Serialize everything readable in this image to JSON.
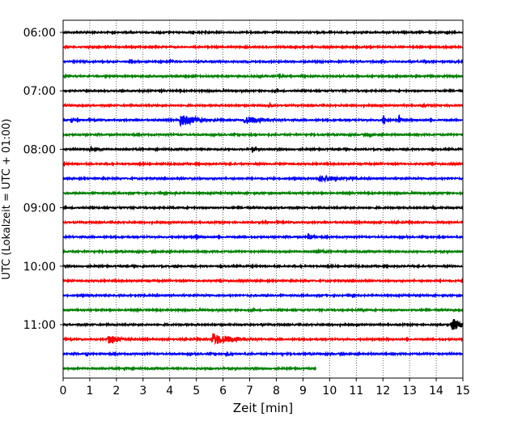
{
  "chart_data": {
    "type": "line",
    "title": "",
    "xlabel": "Zeit  [min]",
    "ylabel": "UTC (Lokalzeit = UTC + 01:00)",
    "xlim": [
      0,
      15
    ],
    "x_ticks": [
      0,
      1,
      2,
      3,
      4,
      5,
      6,
      7,
      8,
      9,
      10,
      11,
      12,
      13,
      14,
      15
    ],
    "y_tick_labels": [
      "06:00",
      "07:00",
      "08:00",
      "09:00",
      "10:00",
      "11:00"
    ],
    "vertical_grid": true,
    "trace_colors": [
      "#000000",
      "#ff0000",
      "#0000ff",
      "#008000"
    ],
    "traces": [
      {
        "start": "06:00",
        "end_min": 15,
        "color": "#000000",
        "events": []
      },
      {
        "start": "06:15",
        "end_min": 15,
        "color": "#ff0000",
        "events": []
      },
      {
        "start": "06:30",
        "end_min": 15,
        "color": "#0000ff",
        "events": [
          {
            "t": 4.0,
            "amp": 0.25,
            "dur": 0.4
          },
          {
            "t": 14.7,
            "amp": 0.2,
            "dur": 0.3
          }
        ]
      },
      {
        "start": "06:45",
        "end_min": 15,
        "color": "#008000",
        "events": [
          {
            "t": 3.2,
            "amp": 0.25,
            "dur": 0.2
          },
          {
            "t": 8.1,
            "amp": 0.45,
            "dur": 0.3
          }
        ]
      },
      {
        "start": "07:00",
        "end_min": 15,
        "color": "#000000",
        "events": [
          {
            "t": 2.2,
            "amp": 0.3,
            "dur": 0.2
          }
        ]
      },
      {
        "start": "07:15",
        "end_min": 15,
        "color": "#ff0000",
        "events": [
          {
            "t": 7.7,
            "amp": 0.3,
            "dur": 0.4
          },
          {
            "t": 13.5,
            "amp": 0.4,
            "dur": 0.2
          },
          {
            "t": 14.5,
            "amp": 0.2,
            "dur": 0.3
          }
        ]
      },
      {
        "start": "07:30",
        "end_min": 15,
        "color": "#0000ff",
        "events": [
          {
            "t": 0.3,
            "amp": 0.5,
            "dur": 0.2
          },
          {
            "t": 4.4,
            "amp": 0.9,
            "dur": 1.0
          },
          {
            "t": 6.8,
            "amp": 0.6,
            "dur": 1.3
          },
          {
            "t": 12.0,
            "amp": 0.9,
            "dur": 0.2
          },
          {
            "t": 12.6,
            "amp": 0.7,
            "dur": 0.2
          }
        ]
      },
      {
        "start": "07:45",
        "end_min": 15,
        "color": "#008000",
        "events": [
          {
            "t": 11.5,
            "amp": 0.5,
            "dur": 0.1
          }
        ]
      },
      {
        "start": "08:00",
        "end_min": 15,
        "color": "#000000",
        "events": [
          {
            "t": 1.0,
            "amp": 0.3,
            "dur": 0.8
          },
          {
            "t": 7.1,
            "amp": 0.5,
            "dur": 0.2
          }
        ]
      },
      {
        "start": "08:15",
        "end_min": 15,
        "color": "#ff0000",
        "events": []
      },
      {
        "start": "08:30",
        "end_min": 15,
        "color": "#0000ff",
        "events": [
          {
            "t": 9.6,
            "amp": 0.5,
            "dur": 1.5
          },
          {
            "t": 4.8,
            "amp": 0.2,
            "dur": 0.4
          }
        ]
      },
      {
        "start": "08:45",
        "end_min": 15,
        "color": "#008000",
        "events": [
          {
            "t": 4.2,
            "amp": 0.25,
            "dur": 0.3
          }
        ]
      },
      {
        "start": "09:00",
        "end_min": 15,
        "color": "#000000",
        "events": [
          {
            "t": 13.9,
            "amp": 0.3,
            "dur": 0.2
          }
        ]
      },
      {
        "start": "09:15",
        "end_min": 15,
        "color": "#ff0000",
        "events": []
      },
      {
        "start": "09:30",
        "end_min": 15,
        "color": "#0000ff",
        "events": [
          {
            "t": 5.0,
            "amp": 0.4,
            "dur": 0.3
          },
          {
            "t": 9.2,
            "amp": 0.6,
            "dur": 0.3
          }
        ]
      },
      {
        "start": "09:45",
        "end_min": 15,
        "color": "#008000",
        "events": [
          {
            "t": 9.5,
            "amp": 0.35,
            "dur": 0.5
          }
        ]
      },
      {
        "start": "10:00",
        "end_min": 15,
        "color": "#000000",
        "events": []
      },
      {
        "start": "10:15",
        "end_min": 15,
        "color": "#ff0000",
        "events": []
      },
      {
        "start": "10:30",
        "end_min": 15,
        "color": "#0000ff",
        "events": [
          {
            "t": 7.5,
            "amp": 0.2,
            "dur": 0.4
          }
        ]
      },
      {
        "start": "10:45",
        "end_min": 15,
        "color": "#008000",
        "events": [
          {
            "t": 11.2,
            "amp": 0.25,
            "dur": 0.3
          }
        ]
      },
      {
        "start": "11:00",
        "end_min": 15,
        "color": "#000000",
        "events": [
          {
            "t": 7.4,
            "amp": 0.3,
            "dur": 0.2
          },
          {
            "t": 14.6,
            "amp": 1.0,
            "dur": 0.6
          }
        ]
      },
      {
        "start": "11:15",
        "end_min": 15,
        "color": "#ff0000",
        "events": [
          {
            "t": 1.7,
            "amp": 0.8,
            "dur": 0.7
          },
          {
            "t": 5.6,
            "amp": 0.9,
            "dur": 1.3
          }
        ]
      },
      {
        "start": "11:30",
        "end_min": 15,
        "color": "#0000ff",
        "events": [
          {
            "t": 0.9,
            "amp": 0.4,
            "dur": 0.1
          },
          {
            "t": 6.1,
            "amp": 0.45,
            "dur": 0.3
          },
          {
            "t": 8.2,
            "amp": 0.2,
            "dur": 0.2
          }
        ]
      },
      {
        "start": "11:45",
        "end_min": 9.5,
        "color": "#008000",
        "events": [
          {
            "t": 2.3,
            "amp": 0.25,
            "dur": 0.3
          },
          {
            "t": 5.4,
            "amp": 0.2,
            "dur": 0.6
          }
        ]
      }
    ]
  }
}
